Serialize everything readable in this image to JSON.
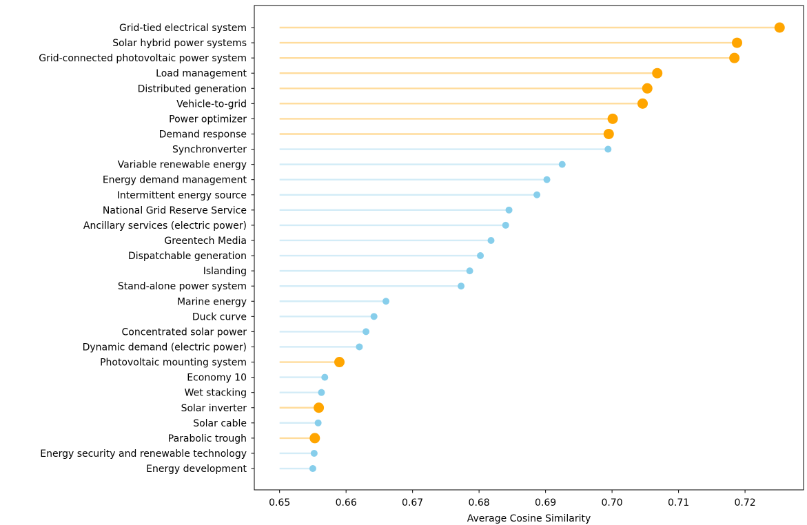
{
  "chart_data": {
    "type": "lollipop",
    "xlabel": "Average Cosine Similarity",
    "ylabel": "",
    "xlim": [
      0.6462,
      0.7288
    ],
    "xticks": [
      "0.65",
      "0.66",
      "0.67",
      "0.68",
      "0.69",
      "0.70",
      "0.71",
      "0.72"
    ],
    "baseline": 0.65,
    "grid": false,
    "colors": {
      "highlight_marker": "#FFA500",
      "highlight_stem": "#FFDC9C",
      "normal_marker": "#87CEEB",
      "normal_stem": "#D3ECF7"
    },
    "categories": [
      "Grid-tied electrical system",
      "Solar hybrid power systems",
      "Grid-connected photovoltaic power system",
      "Load management",
      "Distributed generation",
      "Vehicle-to-grid",
      "Power optimizer",
      "Demand response",
      "Synchronverter",
      "Variable renewable energy",
      "Energy demand management",
      "Intermittent energy source",
      "National Grid Reserve Service",
      "Ancillary services (electric power)",
      "Greentech Media",
      "Dispatchable generation",
      "Islanding",
      "Stand-alone power system",
      "Marine energy",
      "Duck curve",
      "Concentrated solar power",
      "Dynamic demand (electric power)",
      "Photovoltaic mounting system",
      "Economy 10",
      "Wet stacking",
      "Solar inverter",
      "Solar cable",
      "Parabolic trough",
      "Energy security and renewable technology",
      "Energy development"
    ],
    "values": [
      0.7252,
      0.7188,
      0.7184,
      0.7068,
      0.7053,
      0.7046,
      0.7001,
      0.6995,
      0.6994,
      0.6925,
      0.6902,
      0.6887,
      0.6845,
      0.684,
      0.6818,
      0.6802,
      0.6786,
      0.6773,
      0.666,
      0.6642,
      0.663,
      0.662,
      0.659,
      0.6568,
      0.6563,
      0.6559,
      0.6558,
      0.6553,
      0.6552,
      0.655
    ],
    "highlighted": [
      true,
      true,
      true,
      true,
      true,
      true,
      true,
      true,
      false,
      false,
      false,
      false,
      false,
      false,
      false,
      false,
      false,
      false,
      false,
      false,
      false,
      false,
      true,
      false,
      false,
      true,
      false,
      true,
      false,
      false
    ]
  }
}
